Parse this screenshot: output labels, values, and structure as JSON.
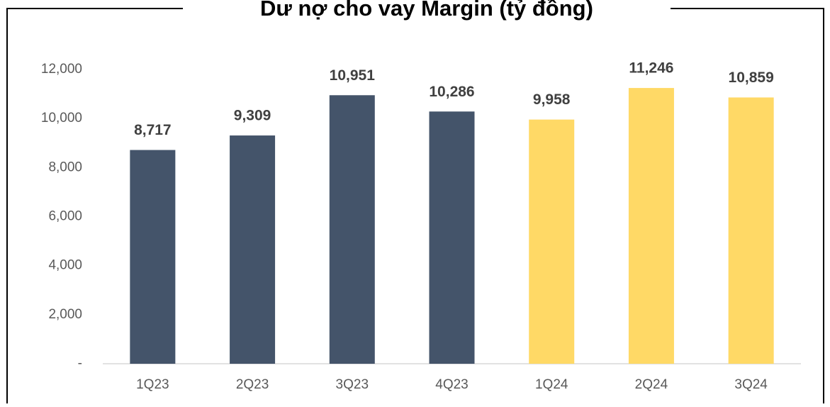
{
  "chart_data": {
    "type": "bar",
    "title": "Dư nợ cho vay Margin (tỷ đồng)",
    "categories": [
      "1Q23",
      "2Q23",
      "3Q23",
      "4Q23",
      "1Q24",
      "2Q24",
      "3Q24"
    ],
    "values": [
      8717,
      9309,
      10951,
      10286,
      9958,
      11246,
      10859
    ],
    "value_labels": [
      "8,717",
      "9,309",
      "10,951",
      "10,286",
      "9,958",
      "11,246",
      "10,859"
    ],
    "colors": [
      "#44546a",
      "#44546a",
      "#44546a",
      "#44546a",
      "#ffd966",
      "#ffd966",
      "#ffd966"
    ],
    "ylim": [
      0,
      12000
    ],
    "yticks": [
      {
        "value": 0,
        "label": "-"
      },
      {
        "value": 2000,
        "label": "2,000"
      },
      {
        "value": 4000,
        "label": "4,000"
      },
      {
        "value": 6000,
        "label": "6,000"
      },
      {
        "value": 8000,
        "label": "8,000"
      },
      {
        "value": 10000,
        "label": "10,000"
      },
      {
        "value": 12000,
        "label": "12,000"
      }
    ],
    "grid": false
  }
}
